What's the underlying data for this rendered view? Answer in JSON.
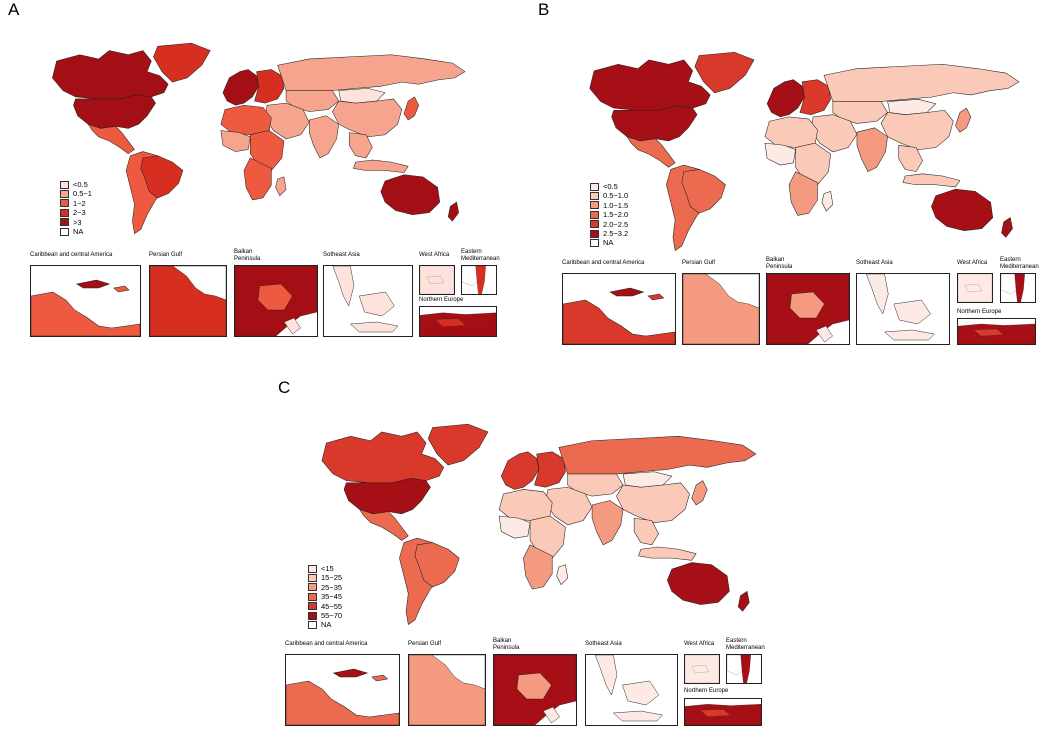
{
  "panels": [
    {
      "id": "A",
      "letter": "A",
      "legend": [
        "<0.5",
        "0.5−1",
        "1−2",
        "2−3",
        ">3",
        "NA"
      ],
      "palette": [
        "#fde3dc",
        "#f6a48e",
        "#ee5a40",
        "#d62f22",
        "#a30f14",
        "#ffffff"
      ],
      "regions": {
        "canada": 4,
        "usa": 4,
        "greenland": 3,
        "mexico": 2,
        "south_america": 2,
        "brazil": 3,
        "europe_w": 4,
        "europe_e": 3,
        "russia": 1,
        "central_asia": 1,
        "mongolia": 0,
        "china": 1,
        "japan": 2,
        "middle_east": 1,
        "india": 1,
        "se_asia": 1,
        "north_africa": 2,
        "west_africa": 1,
        "east_africa": 2,
        "southern_africa": 2,
        "madagascar": 1,
        "australia": 4,
        "new_zealand": 4,
        "indonesia": 1
      }
    },
    {
      "id": "B",
      "letter": "B",
      "legend": [
        "<0.5",
        "0.5−1.0",
        "1.0−1.5",
        "1.5−2.0",
        "2.0−2.5",
        "2.5−3.2",
        "NA"
      ],
      "palette": [
        "#fdeae4",
        "#fbc9b8",
        "#f49a80",
        "#ec6a50",
        "#d8392b",
        "#a50f15",
        "#ffffff"
      ],
      "regions": {
        "canada": 5,
        "usa": 5,
        "greenland": 4,
        "mexico": 3,
        "south_america": 3,
        "brazil": 3,
        "europe_w": 5,
        "europe_e": 4,
        "russia": 1,
        "central_asia": 1,
        "mongolia": 0,
        "china": 1,
        "japan": 2,
        "middle_east": 1,
        "india": 2,
        "se_asia": 1,
        "north_africa": 1,
        "west_africa": 0,
        "east_africa": 1,
        "southern_africa": 2,
        "madagascar": 0,
        "australia": 5,
        "new_zealand": 5,
        "indonesia": 1
      }
    },
    {
      "id": "C",
      "letter": "C",
      "legend": [
        "<15",
        "15−25",
        "25−35",
        "35−45",
        "45−55",
        "55−70",
        "NA"
      ],
      "palette": [
        "#fdeae4",
        "#fbc9b8",
        "#f49a80",
        "#ec6a50",
        "#d8392b",
        "#a50f15",
        "#ffffff"
      ],
      "regions": {
        "canada": 4,
        "usa": 5,
        "greenland": 4,
        "mexico": 3,
        "south_america": 3,
        "brazil": 3,
        "europe_w": 4,
        "europe_e": 4,
        "russia": 3,
        "central_asia": 1,
        "mongolia": 0,
        "china": 1,
        "japan": 2,
        "middle_east": 1,
        "india": 2,
        "se_asia": 1,
        "north_africa": 1,
        "west_africa": 0,
        "east_africa": 1,
        "southern_africa": 2,
        "madagascar": 0,
        "australia": 5,
        "new_zealand": 5,
        "indonesia": 1
      }
    }
  ],
  "insets": [
    {
      "key": "caribbean",
      "title": "Caribbean and central America"
    },
    {
      "key": "persian_gulf",
      "title": "Persian Gulf"
    },
    {
      "key": "balkan",
      "title": "Balkan\nPeninsula"
    },
    {
      "key": "se_asia",
      "title": "Sotheast Asia"
    },
    {
      "key": "west_africa",
      "title": "West Africa"
    },
    {
      "key": "east_med",
      "title": "Eastern\nMediterranean"
    },
    {
      "key": "northern_europe",
      "title": "Northern Europe"
    }
  ],
  "inset_colors": {
    "A": {
      "caribbean": 2,
      "persian_gulf": 3,
      "balkan": 4,
      "se_asia": 0,
      "west_africa": 0,
      "east_med": 3,
      "northern_europe": 4
    },
    "B": {
      "caribbean": 4,
      "persian_gulf": 2,
      "balkan": 5,
      "se_asia": 0,
      "west_africa": 0,
      "east_med": 5,
      "northern_europe": 5
    },
    "C": {
      "caribbean": 3,
      "persian_gulf": 2,
      "balkan": 5,
      "se_asia": 0,
      "west_africa": 0,
      "east_med": 5,
      "northern_europe": 5
    }
  }
}
